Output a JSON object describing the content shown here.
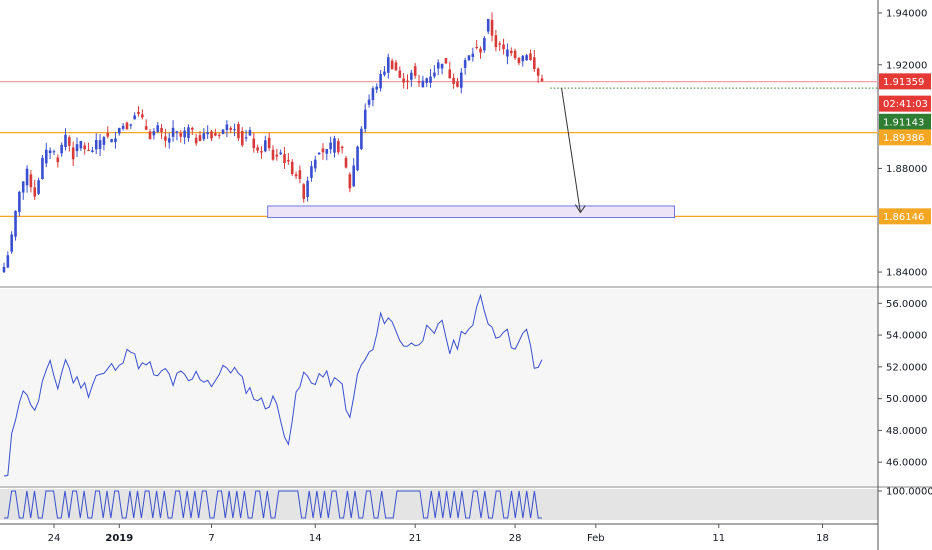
{
  "chart_data": [
    {
      "type": "candlestick",
      "title": "",
      "ylim": [
        1.835,
        1.945
      ],
      "xlim": [
        0,
        232
      ],
      "colors": {
        "up": "#3a4fcf",
        "down": "#d83a3a",
        "wick": "#444444"
      },
      "y_ticks": [
        "1.94000",
        "1.92000",
        "1.88000",
        "1.84000"
      ],
      "y_tick_values": [
        1.94,
        1.92,
        1.88,
        1.84
      ],
      "x_ticks": [
        {
          "label": "24",
          "x": 13
        },
        {
          "label": "2019",
          "x": 30,
          "bold": true
        },
        {
          "label": "7",
          "x": 54
        },
        {
          "label": "14",
          "x": 81
        },
        {
          "label": "21",
          "x": 107
        },
        {
          "label": "28",
          "x": 133
        },
        {
          "label": "Feb",
          "x": 154
        },
        {
          "label": "11",
          "x": 186
        },
        {
          "label": "18",
          "x": 213
        }
      ],
      "close_anchors": [
        [
          0,
          1.842
        ],
        [
          2,
          1.853
        ],
        [
          4,
          1.872
        ],
        [
          6,
          1.878
        ],
        [
          8,
          1.87
        ],
        [
          10,
          1.883
        ],
        [
          12,
          1.888
        ],
        [
          14,
          1.884
        ],
        [
          16,
          1.893
        ],
        [
          18,
          1.885
        ],
        [
          20,
          1.89
        ],
        [
          22,
          1.886
        ],
        [
          24,
          1.889
        ],
        [
          26,
          1.893
        ],
        [
          28,
          1.89
        ],
        [
          30,
          1.897
        ],
        [
          32,
          1.896
        ],
        [
          34,
          1.902
        ],
        [
          36,
          1.898
        ],
        [
          38,
          1.893
        ],
        [
          40,
          1.895
        ],
        [
          42,
          1.89
        ],
        [
          44,
          1.894
        ],
        [
          46,
          1.892
        ],
        [
          48,
          1.895
        ],
        [
          50,
          1.891
        ],
        [
          52,
          1.894
        ],
        [
          54,
          1.892
        ],
        [
          56,
          1.894
        ],
        [
          58,
          1.896
        ],
        [
          60,
          1.897
        ],
        [
          62,
          1.89
        ],
        [
          64,
          1.893
        ],
        [
          66,
          1.885
        ],
        [
          68,
          1.89
        ],
        [
          70,
          1.884
        ],
        [
          72,
          1.886
        ],
        [
          74,
          1.881
        ],
        [
          76,
          1.878
        ],
        [
          78,
          1.87
        ],
        [
          80,
          1.882
        ],
        [
          82,
          1.888
        ],
        [
          84,
          1.886
        ],
        [
          86,
          1.89
        ],
        [
          88,
          1.886
        ],
        [
          90,
          1.873
        ],
        [
          92,
          1.889
        ],
        [
          94,
          1.903
        ],
        [
          96,
          1.91
        ],
        [
          98,
          1.915
        ],
        [
          100,
          1.922
        ],
        [
          102,
          1.918
        ],
        [
          104,
          1.912
        ],
        [
          106,
          1.918
        ],
        [
          108,
          1.912
        ],
        [
          110,
          1.915
        ],
        [
          112,
          1.918
        ],
        [
          114,
          1.922
        ],
        [
          116,
          1.916
        ],
        [
          118,
          1.913
        ],
        [
          120,
          1.921
        ],
        [
          122,
          1.925
        ],
        [
          124,
          1.926
        ],
        [
          126,
          1.936
        ],
        [
          128,
          1.928
        ],
        [
          130,
          1.925
        ],
        [
          132,
          1.926
        ],
        [
          134,
          1.922
        ],
        [
          136,
          1.925
        ],
        [
          138,
          1.918
        ],
        [
          140,
          1.9135
        ]
      ],
      "candle_count": 141,
      "horizontal_lines": [
        {
          "name": "red-resistance",
          "value": 1.9135,
          "color": "#f0a0a0"
        },
        {
          "name": "orange-level-upper",
          "value": 1.8938,
          "color": "#f5a623"
        },
        {
          "name": "orange-level-lower",
          "value": 1.8615,
          "color": "#f5a623"
        }
      ],
      "dotted_line": {
        "value": 1.911,
        "x_from": 145,
        "x_to": 232,
        "color": "#2e7d32"
      },
      "zone": {
        "y_top": 1.8655,
        "y_bottom": 1.861,
        "x_from": 70,
        "x_to": 178,
        "fill": "#ede4f7",
        "stroke": "#4d5bd6"
      },
      "arrow": {
        "from": [
          148,
          1.911
        ],
        "to": [
          153,
          1.863
        ],
        "color": "#333333"
      },
      "price_tags": [
        {
          "label": "1.91359",
          "value": 1.9136,
          "bg": "#e53935"
        },
        {
          "label": "02:41:03",
          "value": 1.905,
          "bg": "#e53935"
        },
        {
          "label": "1.91143",
          "value": 1.898,
          "bg": "#2e7d32"
        },
        {
          "label": "1.89386",
          "value": 1.892,
          "bg": "#f5a623"
        },
        {
          "label": "1.86146",
          "value": 1.8615,
          "bg": "#f5a623"
        }
      ]
    },
    {
      "type": "line",
      "title": "",
      "ylim": [
        44.5,
        56.9
      ],
      "y_ticks": [
        "56.0000",
        "54.0000",
        "52.0000",
        "50.0000",
        "48.0000",
        "46.0000"
      ],
      "y_tick_values": [
        56,
        54,
        52,
        50,
        48,
        46
      ],
      "color": "#3a4fcf",
      "anchors": [
        [
          0,
          45.0
        ],
        [
          1,
          44.8
        ],
        [
          2,
          48.0
        ],
        [
          4,
          50.0
        ],
        [
          6,
          50.5
        ],
        [
          8,
          49.0
        ],
        [
          10,
          51.0
        ],
        [
          12,
          52.0
        ],
        [
          14,
          50.8
        ],
        [
          16,
          52.5
        ],
        [
          18,
          51.2
        ],
        [
          20,
          51.0
        ],
        [
          22,
          50.5
        ],
        [
          24,
          51.5
        ],
        [
          26,
          51.5
        ],
        [
          28,
          52.0
        ],
        [
          30,
          51.8
        ],
        [
          32,
          53.5
        ],
        [
          34,
          52.5
        ],
        [
          36,
          52.0
        ],
        [
          38,
          52.0
        ],
        [
          40,
          51.2
        ],
        [
          42,
          51.8
        ],
        [
          44,
          51.0
        ],
        [
          46,
          51.5
        ],
        [
          48,
          51.0
        ],
        [
          50,
          51.5
        ],
        [
          52,
          51.3
        ],
        [
          54,
          51.0
        ],
        [
          56,
          51.5
        ],
        [
          58,
          52.0
        ],
        [
          60,
          51.8
        ],
        [
          62,
          51.0
        ],
        [
          64,
          50.5
        ],
        [
          66,
          50.0
        ],
        [
          68,
          49.5
        ],
        [
          70,
          50.2
        ],
        [
          72,
          48.5
        ],
        [
          74,
          47.5
        ],
        [
          76,
          50.0
        ],
        [
          78,
          51.5
        ],
        [
          80,
          51.0
        ],
        [
          82,
          51.5
        ],
        [
          84,
          51.3
        ],
        [
          86,
          51.0
        ],
        [
          88,
          50.8
        ],
        [
          90,
          48.5
        ],
        [
          92,
          51.5
        ],
        [
          94,
          52.5
        ],
        [
          96,
          53.0
        ],
        [
          98,
          55.0
        ],
        [
          100,
          55.2
        ],
        [
          102,
          54.2
        ],
        [
          104,
          53.5
        ],
        [
          106,
          53.3
        ],
        [
          108,
          53.8
        ],
        [
          110,
          54.2
        ],
        [
          112,
          53.8
        ],
        [
          114,
          55.0
        ],
        [
          116,
          53.0
        ],
        [
          118,
          53.5
        ],
        [
          120,
          54.5
        ],
        [
          122,
          54.5
        ],
        [
          124,
          56.3
        ],
        [
          126,
          55.0
        ],
        [
          128,
          54.0
        ],
        [
          130,
          54.5
        ],
        [
          132,
          53.5
        ],
        [
          134,
          53.5
        ],
        [
          136,
          54.2
        ],
        [
          138,
          52.0
        ],
        [
          140,
          52.1
        ]
      ]
    },
    {
      "type": "line",
      "title": "",
      "ylim": [
        0,
        100
      ],
      "y_ticks": [
        "100.0000"
      ],
      "y_tick_values": [
        100
      ],
      "color": "#3a4fcf",
      "period_note": "oscillates between 0 and 100",
      "pattern": [
        0,
        0,
        100,
        100,
        0,
        0,
        100,
        0,
        100,
        0,
        0,
        100,
        100,
        100,
        0,
        0,
        100,
        0,
        100,
        100,
        0,
        100,
        0,
        0,
        100,
        100,
        0,
        100,
        0,
        100,
        100,
        0,
        0,
        100,
        0,
        100,
        0,
        100,
        100,
        0,
        100,
        0,
        100,
        0,
        0,
        100,
        100,
        0,
        100,
        0,
        100,
        0,
        100,
        100,
        0,
        0,
        100,
        100,
        0,
        100,
        0,
        100,
        0,
        100,
        0,
        0,
        100,
        100,
        0,
        100,
        0,
        0,
        100,
        100,
        100,
        100,
        100,
        100,
        0,
        0,
        100,
        0,
        100,
        0,
        100,
        0,
        100,
        100,
        0,
        0,
        100,
        0,
        100,
        0,
        0,
        100,
        100,
        0,
        0,
        100,
        0,
        0,
        0,
        100,
        100,
        100,
        100,
        100,
        100,
        100,
        0,
        0,
        100,
        0,
        100,
        0,
        100,
        0,
        100,
        0,
        100,
        0,
        0,
        100,
        100,
        0,
        100,
        0,
        0,
        100,
        100,
        0,
        0,
        100,
        0,
        100,
        0,
        100,
        0,
        100,
        0,
        0
      ]
    }
  ]
}
